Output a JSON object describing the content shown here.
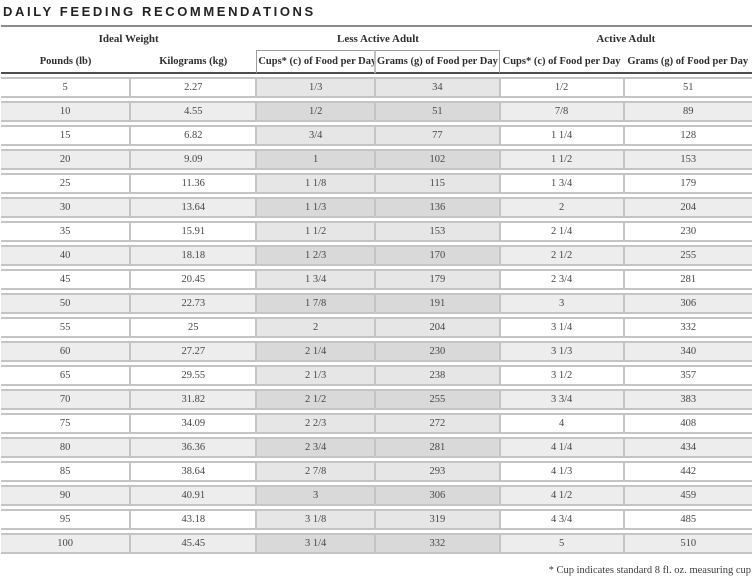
{
  "title": "DAILY FEEDING RECOMMENDATIONS",
  "footnote": "* Cup indicates standard 8 fl. oz. measuring cup",
  "colors": {
    "title_text": "#232323",
    "title_rule": "#8c8c8c",
    "row_border": "#c4c4c4",
    "header_underline": "#4d4d4d",
    "alt_row_bg": "#ededed",
    "less_active_tint": "#e6e6e6",
    "less_active_alt_tint": "#d9d9d9"
  },
  "table": {
    "groups": [
      {
        "label": "Ideal Weight"
      },
      {
        "label": "Less Active Adult"
      },
      {
        "label": "Active Adult"
      }
    ],
    "columns": [
      "Pounds (lb)",
      "Kilograms (kg)",
      "Cups* (c) of Food per Day",
      "Grams (g) of Food per Day",
      "Cups* (c) of Food per Day",
      "Grams (g) of Food per Day"
    ],
    "rows": [
      [
        "5",
        "2.27",
        "1/3",
        "34",
        "1/2",
        "51"
      ],
      [
        "10",
        "4.55",
        "1/2",
        "51",
        "7/8",
        "89"
      ],
      [
        "15",
        "6.82",
        "3/4",
        "77",
        "1 1/4",
        "128"
      ],
      [
        "20",
        "9.09",
        "1",
        "102",
        "1 1/2",
        "153"
      ],
      [
        "25",
        "11.36",
        "1 1/8",
        "115",
        "1 3/4",
        "179"
      ],
      [
        "30",
        "13.64",
        "1 1/3",
        "136",
        "2",
        "204"
      ],
      [
        "35",
        "15.91",
        "1 1/2",
        "153",
        "2 1/4",
        "230"
      ],
      [
        "40",
        "18.18",
        "1 2/3",
        "170",
        "2 1/2",
        "255"
      ],
      [
        "45",
        "20.45",
        "1 3/4",
        "179",
        "2 3/4",
        "281"
      ],
      [
        "50",
        "22.73",
        "1 7/8",
        "191",
        "3",
        "306"
      ],
      [
        "55",
        "25",
        "2",
        "204",
        "3 1/4",
        "332"
      ],
      [
        "60",
        "27.27",
        "2 1/4",
        "230",
        "3 1/3",
        "340"
      ],
      [
        "65",
        "29.55",
        "2 1/3",
        "238",
        "3 1/2",
        "357"
      ],
      [
        "70",
        "31.82",
        "2 1/2",
        "255",
        "3 3/4",
        "383"
      ],
      [
        "75",
        "34.09",
        "2 2/3",
        "272",
        "4",
        "408"
      ],
      [
        "80",
        "36.36",
        "2 3/4",
        "281",
        "4 1/4",
        "434"
      ],
      [
        "85",
        "38.64",
        "2 7/8",
        "293",
        "4 1/3",
        "442"
      ],
      [
        "90",
        "40.91",
        "3",
        "306",
        "4 1/2",
        "459"
      ],
      [
        "95",
        "43.18",
        "3 1/8",
        "319",
        "4 3/4",
        "485"
      ],
      [
        "100",
        "45.45",
        "3 1/4",
        "332",
        "5",
        "510"
      ]
    ]
  }
}
